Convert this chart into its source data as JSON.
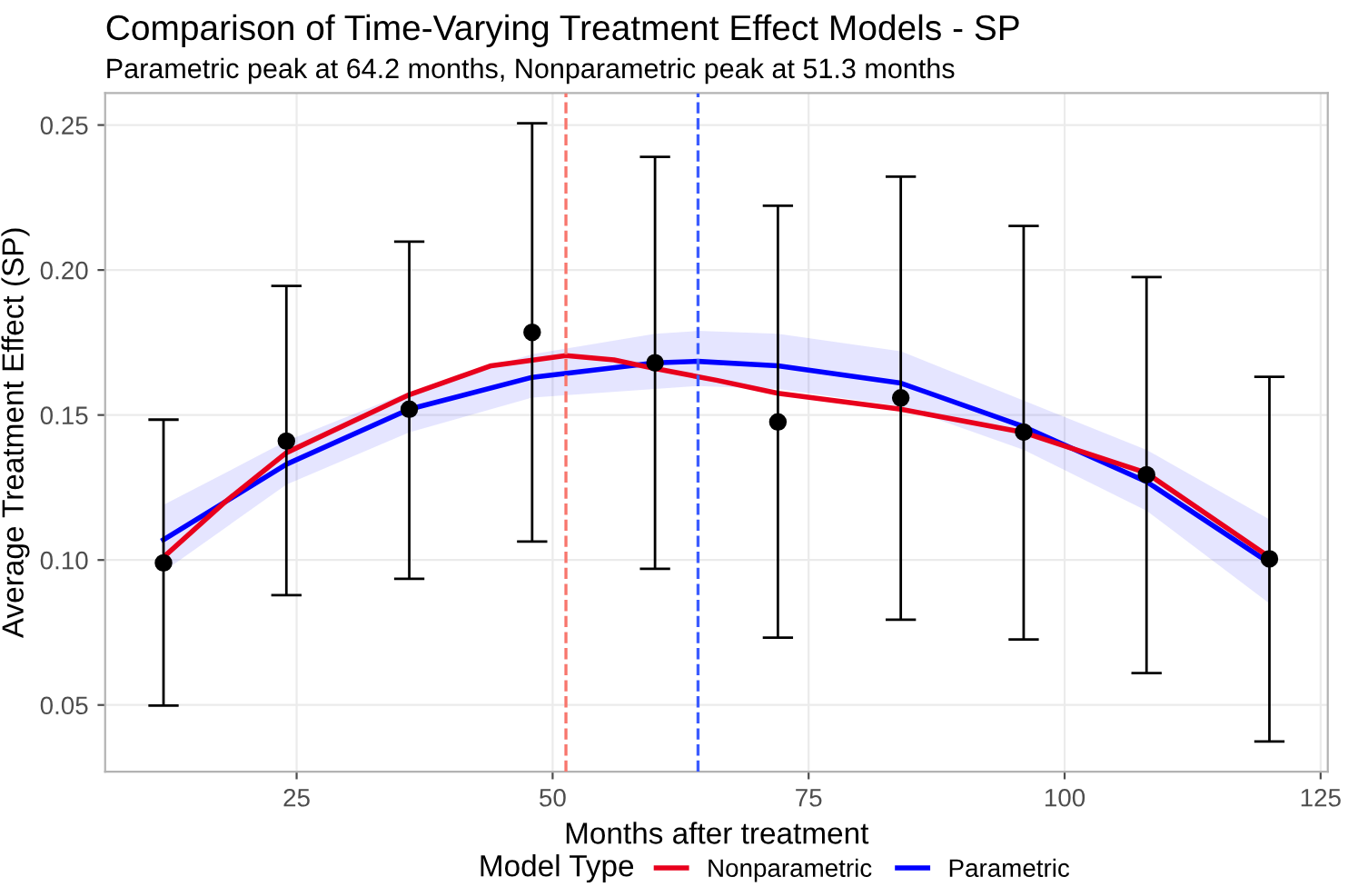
{
  "chart_data": {
    "type": "scatter",
    "title": "Comparison of Time-Varying Treatment Effect Models - SP",
    "subtitle": "Parametric peak at 64.2 months, Nonparametric peak at 51.3 months",
    "xlabel": "Months after treatment",
    "ylabel": "Average Treatment Effect (SP)",
    "legend_title": "Model Type",
    "xlim": [
      6.3,
      125.7
    ],
    "ylim": [
      0.027,
      0.261
    ],
    "xticks": [
      25,
      50,
      75,
      100,
      125
    ],
    "yticks": [
      {
        "value": 0.05,
        "label": "0.05"
      },
      {
        "value": 0.1,
        "label": "0.10"
      },
      {
        "value": 0.15,
        "label": "0.15"
      },
      {
        "value": 0.2,
        "label": "0.20"
      },
      {
        "value": 0.25,
        "label": "0.25"
      }
    ],
    "grid": true,
    "legend": "bottom",
    "ref_lines": [
      {
        "axis": "x",
        "value": 51.3,
        "color": "#f8766d",
        "line_style": "dashed"
      },
      {
        "axis": "x",
        "value": 64.2,
        "color": "#3b5bff",
        "line_style": "dashed"
      }
    ],
    "series": [
      {
        "type": "line",
        "name": "Parametric",
        "color": "#0000ff",
        "x": [
          12,
          24,
          36,
          48,
          60,
          64.2,
          72,
          84,
          96,
          108,
          120
        ],
        "values": [
          0.107,
          0.133,
          0.152,
          0.163,
          0.168,
          0.1685,
          0.167,
          0.161,
          0.146,
          0.127,
          0.099
        ],
        "lower": [
          0.096,
          0.126,
          0.144,
          0.156,
          0.159,
          0.16,
          0.159,
          0.153,
          0.138,
          0.117,
          0.085
        ],
        "upper": [
          0.119,
          0.141,
          0.158,
          0.171,
          0.178,
          0.179,
          0.178,
          0.172,
          0.155,
          0.138,
          0.114
        ]
      },
      {
        "type": "line",
        "name": "Nonparametric",
        "color": "#e8001c",
        "x": [
          12,
          18,
          24,
          36,
          44,
          51.3,
          56,
          60,
          66,
          72,
          84,
          96,
          108,
          120
        ],
        "values": [
          0.101,
          0.12,
          0.137,
          0.157,
          0.167,
          0.1705,
          0.169,
          0.166,
          0.162,
          0.1575,
          0.152,
          0.144,
          0.13,
          0.101
        ]
      },
      {
        "color": "#000000",
        "marker": "circle",
        "x": [
          12,
          24,
          36,
          48,
          60,
          72,
          84,
          96,
          108,
          120
        ],
        "values": [
          0.099,
          0.141,
          0.152,
          0.1785,
          0.168,
          0.1476,
          0.1559,
          0.1441,
          0.1294,
          0.1004
        ],
        "errors": [
          [
            0.0498,
            0.1484
          ],
          [
            0.0879,
            0.1945
          ],
          [
            0.0935,
            0.2098
          ],
          [
            0.1064,
            0.2506
          ],
          [
            0.097,
            0.239
          ],
          [
            0.0732,
            0.2222
          ],
          [
            0.0794,
            0.2322
          ],
          [
            0.0726,
            0.2152
          ],
          [
            0.061,
            0.1976
          ],
          [
            0.0374,
            0.1632
          ]
        ]
      }
    ]
  }
}
